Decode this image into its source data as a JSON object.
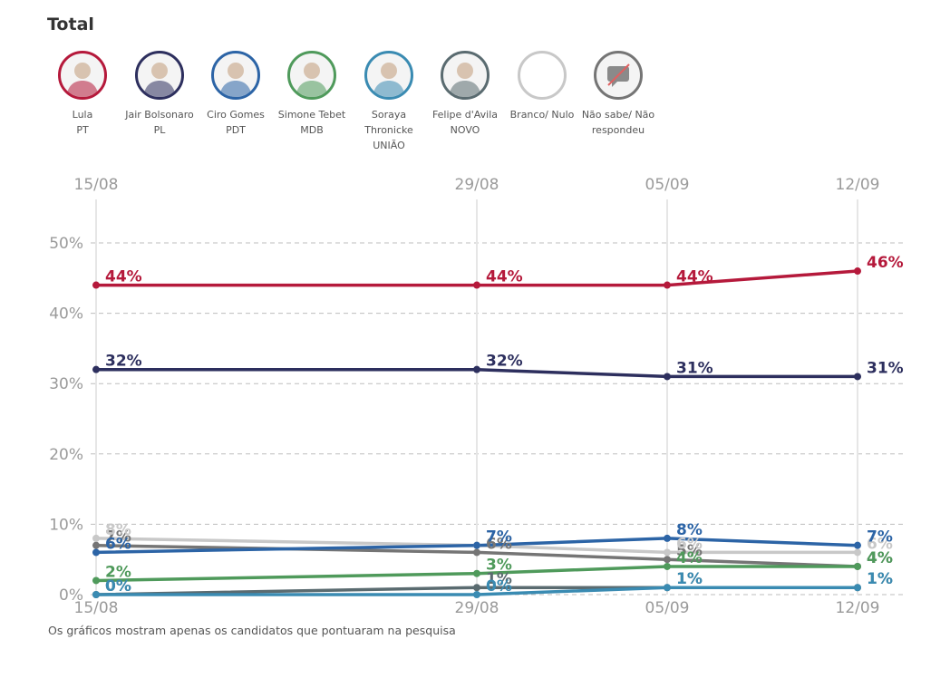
{
  "title": "Total",
  "candidates": [
    {
      "name": "Lula",
      "party": "PT",
      "color": "#b5193b"
    },
    {
      "name": "Jair Bolsonaro",
      "party": "PL",
      "color": "#2d2f5e"
    },
    {
      "name": "Ciro Gomes",
      "party": "PDT",
      "color": "#2c64a6"
    },
    {
      "name": "Simone Tebet",
      "party": "MDB",
      "color": "#4f9a5b"
    },
    {
      "name": "Soraya Thronicke",
      "party": "UNIÃO",
      "color": "#3a8bb2"
    },
    {
      "name": "Felipe d'Avila",
      "party": "NOVO",
      "color": "#5a6b70"
    },
    {
      "name": "Branco/ Nulo",
      "party": "",
      "color": "#c8c8c8"
    },
    {
      "name": "Não sabe/ Não respondeu",
      "party": "",
      "color": "#757575"
    }
  ],
  "chart_data": {
    "type": "line",
    "x": [
      "15/08",
      "29/08",
      "05/09",
      "12/09"
    ],
    "x_days": [
      0,
      14,
      21,
      28
    ],
    "ylim": [
      0,
      50
    ],
    "yticks": [
      0,
      10,
      20,
      30,
      40,
      50
    ],
    "ytick_labels": [
      "0%",
      "10%",
      "20%",
      "30%",
      "40%",
      "50%"
    ],
    "grid": true,
    "series": [
      {
        "name": "Não sabe/ Não respondeu",
        "color": "#757575",
        "values": [
          7,
          6,
          5,
          4
        ],
        "labels": [
          "7%",
          "6%",
          "5%",
          "4%"
        ]
      },
      {
        "name": "Branco/ Nulo",
        "color": "#c8c8c8",
        "values": [
          8,
          7,
          6,
          6
        ],
        "labels": [
          "8%",
          "7%",
          "6%",
          "6%"
        ]
      },
      {
        "name": "Felipe d'Avila",
        "color": "#5a6b70",
        "values": [
          0,
          1,
          1,
          1
        ],
        "labels": [
          "0%",
          "1%",
          "1%",
          "1%"
        ]
      },
      {
        "name": "Soraya Thronicke",
        "color": "#3a8bb2",
        "values": [
          0,
          0,
          1,
          1
        ],
        "labels": [
          "0%",
          "0%",
          "1%",
          "1%"
        ]
      },
      {
        "name": "Simone Tebet",
        "color": "#4f9a5b",
        "values": [
          2,
          3,
          4,
          4
        ],
        "labels": [
          "2%",
          "3%",
          "4%",
          "4%"
        ]
      },
      {
        "name": "Ciro Gomes",
        "color": "#2c64a6",
        "values": [
          6,
          7,
          8,
          7
        ],
        "labels": [
          "6%",
          "7%",
          "8%",
          "7%"
        ]
      },
      {
        "name": "Jair Bolsonaro",
        "color": "#2d2f5e",
        "values": [
          32,
          32,
          31,
          31
        ],
        "labels": [
          "32%",
          "32%",
          "31%",
          "31%"
        ]
      },
      {
        "name": "Lula",
        "color": "#b5193b",
        "values": [
          44,
          44,
          44,
          46
        ],
        "labels": [
          "44%",
          "44%",
          "44%",
          "46%"
        ]
      }
    ]
  },
  "footnote": "Os gráficos mostram apenas os candidatos que pontuaram na pesquisa"
}
